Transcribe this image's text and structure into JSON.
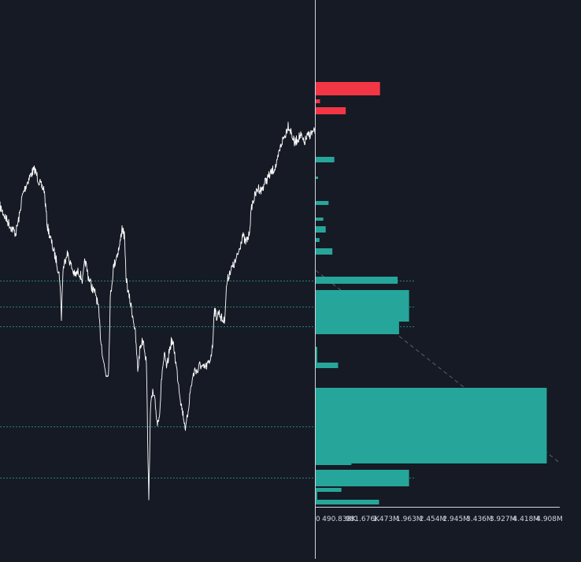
{
  "chart_data": {
    "type": "line",
    "title": "",
    "xlabel": "",
    "ylabel": "",
    "price_series": {
      "name": "",
      "color": "#ffffff",
      "keypoints": [
        [
          0,
          262
        ],
        [
          8,
          278
        ],
        [
          14,
          288
        ],
        [
          20,
          296
        ],
        [
          25,
          272
        ],
        [
          28,
          250
        ],
        [
          32,
          238
        ],
        [
          36,
          228
        ],
        [
          40,
          220
        ],
        [
          44,
          215
        ],
        [
          48,
          226
        ],
        [
          52,
          236
        ],
        [
          56,
          240
        ],
        [
          60,
          286
        ],
        [
          64,
          302
        ],
        [
          68,
          318
        ],
        [
          72,
          332
        ],
        [
          76,
          354
        ],
        [
          78,
          402
        ],
        [
          80,
          342
        ],
        [
          85,
          320
        ],
        [
          90,
          336
        ],
        [
          95,
          350
        ],
        [
          100,
          344
        ],
        [
          105,
          356
        ],
        [
          108,
          330
        ],
        [
          112,
          350
        ],
        [
          118,
          368
        ],
        [
          122,
          374
        ],
        [
          125,
          392
        ],
        [
          128,
          430
        ],
        [
          132,
          462
        ],
        [
          135,
          476
        ],
        [
          138,
          470
        ],
        [
          140,
          380
        ],
        [
          144,
          340
        ],
        [
          148,
          325
        ],
        [
          152,
          312
        ],
        [
          155,
          288
        ],
        [
          158,
          300
        ],
        [
          160,
          350
        ],
        [
          163,
          372
        ],
        [
          166,
          386
        ],
        [
          170,
          408
        ],
        [
          172,
          425
        ],
        [
          175,
          470
        ],
        [
          178,
          440
        ],
        [
          182,
          430
        ],
        [
          186,
          460
        ],
        [
          189,
          640
        ],
        [
          191,
          518
        ],
        [
          194,
          498
        ],
        [
          197,
          512
        ],
        [
          200,
          538
        ],
        [
          203,
          520
        ],
        [
          206,
          470
        ],
        [
          209,
          452
        ],
        [
          212,
          468
        ],
        [
          215,
          445
        ],
        [
          218,
          432
        ],
        [
          221,
          442
        ],
        [
          224,
          465
        ],
        [
          227,
          488
        ],
        [
          230,
          512
        ],
        [
          233,
          528
        ],
        [
          236,
          545
        ],
        [
          239,
          520
        ],
        [
          242,
          494
        ],
        [
          245,
          478
        ],
        [
          248,
          468
        ],
        [
          251,
          472
        ],
        [
          254,
          462
        ],
        [
          258,
          468
        ],
        [
          262,
          465
        ],
        [
          266,
          460
        ],
        [
          270,
          440
        ],
        [
          272,
          392
        ],
        [
          275,
          402
        ],
        [
          278,
          396
        ],
        [
          282,
          405
        ],
        [
          285,
          408
        ],
        [
          288,
          360
        ],
        [
          292,
          344
        ],
        [
          296,
          338
        ],
        [
          300,
          330
        ],
        [
          304,
          316
        ],
        [
          308,
          298
        ],
        [
          312,
          308
        ],
        [
          316,
          300
        ],
        [
          318,
          280
        ],
        [
          320,
          260
        ],
        [
          324,
          248
        ],
        [
          328,
          238
        ],
        [
          332,
          242
        ],
        [
          336,
          232
        ],
        [
          340,
          226
        ],
        [
          344,
          220
        ],
        [
          348,
          214
        ],
        [
          352,
          208
        ],
        [
          354,
          196
        ],
        [
          358,
          180
        ],
        [
          362,
          172
        ],
        [
          366,
          158
        ],
        [
          370,
          168
        ],
        [
          374,
          182
        ],
        [
          378,
          176
        ],
        [
          382,
          172
        ],
        [
          386,
          182
        ],
        [
          390,
          174
        ],
        [
          394,
          170
        ],
        [
          398,
          168
        ],
        [
          400,
          168
        ]
      ]
    },
    "support_levels": [
      356,
      389,
      414,
      541,
      606
    ],
    "level_color": "#26a69a",
    "trend_line": {
      "from": [
        401,
        343
      ],
      "to": [
        712,
        588
      ],
      "color": "#5d606b"
    },
    "volume_profile": {
      "x_axis_ticks": [
        "0",
        "490.838K",
        "981.676K",
        "1.473M",
        "1.963M",
        "2.454M",
        "2.945M",
        "3.436M",
        "3.927M",
        "4.418M",
        "4.908M"
      ],
      "x_max": 4908000,
      "up_color": "#26a69a",
      "down_color": "#f23645",
      "bars": [
        {
          "y1": 104,
          "y2": 121,
          "vol": 1350000,
          "side": "down"
        },
        {
          "y1": 126,
          "y2": 131,
          "vol": 90000,
          "side": "down"
        },
        {
          "y1": 136,
          "y2": 145,
          "vol": 630000,
          "side": "down"
        },
        {
          "y1": 199,
          "y2": 206,
          "vol": 390000,
          "side": "up"
        },
        {
          "y1": 224,
          "y2": 227,
          "vol": 50000,
          "side": "up"
        },
        {
          "y1": 255,
          "y2": 260,
          "vol": 270000,
          "side": "up"
        },
        {
          "y1": 276,
          "y2": 280,
          "vol": 160000,
          "side": "up"
        },
        {
          "y1": 287,
          "y2": 295,
          "vol": 210000,
          "side": "up"
        },
        {
          "y1": 302,
          "y2": 307,
          "vol": 80000,
          "side": "up"
        },
        {
          "y1": 315,
          "y2": 323,
          "vol": 350000,
          "side": "up"
        },
        {
          "y1": 351,
          "y2": 360,
          "vol": 1720000,
          "side": "up"
        },
        {
          "y1": 368,
          "y2": 408,
          "vol": 1960000,
          "side": "up"
        },
        {
          "y1": 404,
          "y2": 424,
          "vol": 1750000,
          "side": "up"
        },
        {
          "y1": 440,
          "y2": 462,
          "vol": 15000,
          "side": "up"
        },
        {
          "y1": 460,
          "y2": 467,
          "vol": 470000,
          "side": "up"
        },
        {
          "y1": 505,
          "y2": 511,
          "vol": 620000,
          "side": "up"
        },
        {
          "y1": 505,
          "y2": 590,
          "vol": 750000,
          "side": "up"
        },
        {
          "y1": 514,
          "y2": 520,
          "vol": 890000,
          "side": "up"
        },
        {
          "y1": 492,
          "y2": 588,
          "vol": 4850000,
          "side": "up"
        },
        {
          "y1": 596,
          "y2": 599,
          "vol": 140000,
          "side": "up"
        },
        {
          "y1": 596,
          "y2": 617,
          "vol": 1960000,
          "side": "up"
        },
        {
          "y1": 619,
          "y2": 624,
          "vol": 540000,
          "side": "up"
        },
        {
          "y1": 624,
          "y2": 634,
          "vol": 15000,
          "side": "up"
        },
        {
          "y1": 634,
          "y2": 640,
          "vol": 1330000,
          "side": "up"
        }
      ]
    }
  }
}
